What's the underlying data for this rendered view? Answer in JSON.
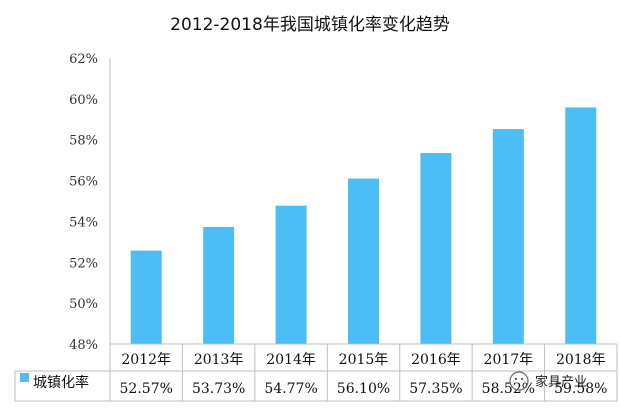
{
  "chart_data": {
    "type": "bar",
    "title": "2012-2018年我国城镇化率变化趋势",
    "categories": [
      "2012年",
      "2013年",
      "2014年",
      "2015年",
      "2016年",
      "2017年",
      "2018年"
    ],
    "series": [
      {
        "name": "城镇化率",
        "values": [
          52.57,
          53.73,
          54.77,
          56.1,
          57.35,
          58.52,
          59.58
        ],
        "labels": [
          "52.57%",
          "53.73%",
          "54.77%",
          "56.10%",
          "57.35%",
          "58.52%",
          "59.58%"
        ],
        "color": "#4dbdf6"
      }
    ],
    "ylim": [
      48,
      62
    ],
    "yticks": [
      "48%",
      "50%",
      "52%",
      "54%",
      "56%",
      "58%",
      "60%",
      "62%"
    ],
    "ytick_values": [
      48,
      50,
      52,
      54,
      56,
      58,
      60,
      62
    ],
    "grid": false,
    "data_table": true
  },
  "watermark": "家具产业"
}
